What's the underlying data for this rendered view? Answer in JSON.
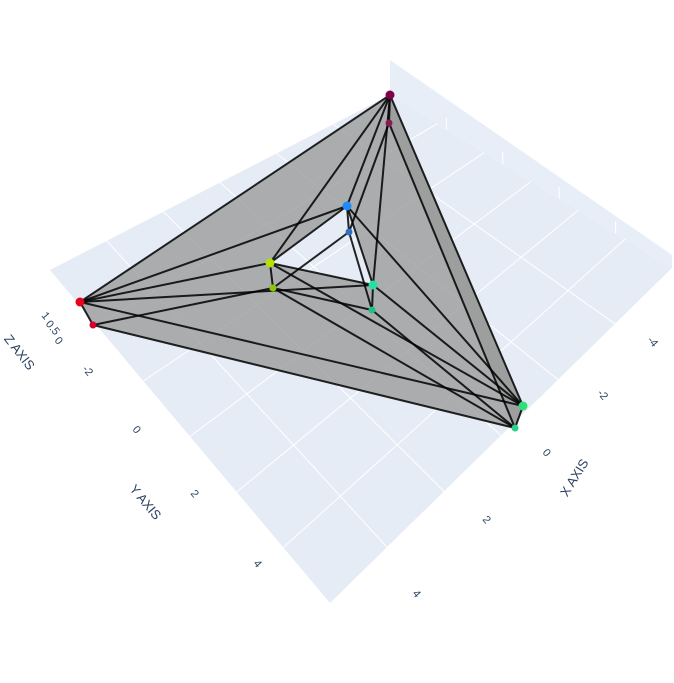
{
  "chart_data": {
    "type": "mesh3d",
    "scene_background": "#e5ecf6",
    "grid_color": "#ffffff",
    "mesh_color": "#9a9a9a",
    "edge_color": "#000000",
    "axes": {
      "x": {
        "title": "X AXIS",
        "ticks": [
          "-4",
          "-2",
          "0",
          "2",
          "4"
        ]
      },
      "y": {
        "title": "Y AXIS",
        "ticks": [
          "-2",
          "0",
          "2",
          "4"
        ]
      },
      "z": {
        "title": "Z AXIS",
        "ticks": [
          "0",
          "0.5",
          "1"
        ]
      }
    },
    "vertices": [
      {
        "name": "outer-left-top",
        "color": "#e8001c"
      },
      {
        "name": "outer-left-bottom",
        "color": "#d4002a"
      },
      {
        "name": "outer-top-top",
        "color": "#80004a"
      },
      {
        "name": "outer-top-bottom",
        "color": "#8a1a55"
      },
      {
        "name": "outer-right-top",
        "color": "#2de07a"
      },
      {
        "name": "outer-right-bottom",
        "color": "#2cd08a"
      },
      {
        "name": "inner-left-top",
        "color": "#b5e000"
      },
      {
        "name": "inner-left-bottom",
        "color": "#8ac800"
      },
      {
        "name": "inner-top-top",
        "color": "#1e8cff"
      },
      {
        "name": "inner-top-bottom",
        "color": "#3070c0"
      },
      {
        "name": "inner-right-top",
        "color": "#25e0a0"
      },
      {
        "name": "inner-right-bottom",
        "color": "#20c080"
      }
    ]
  }
}
